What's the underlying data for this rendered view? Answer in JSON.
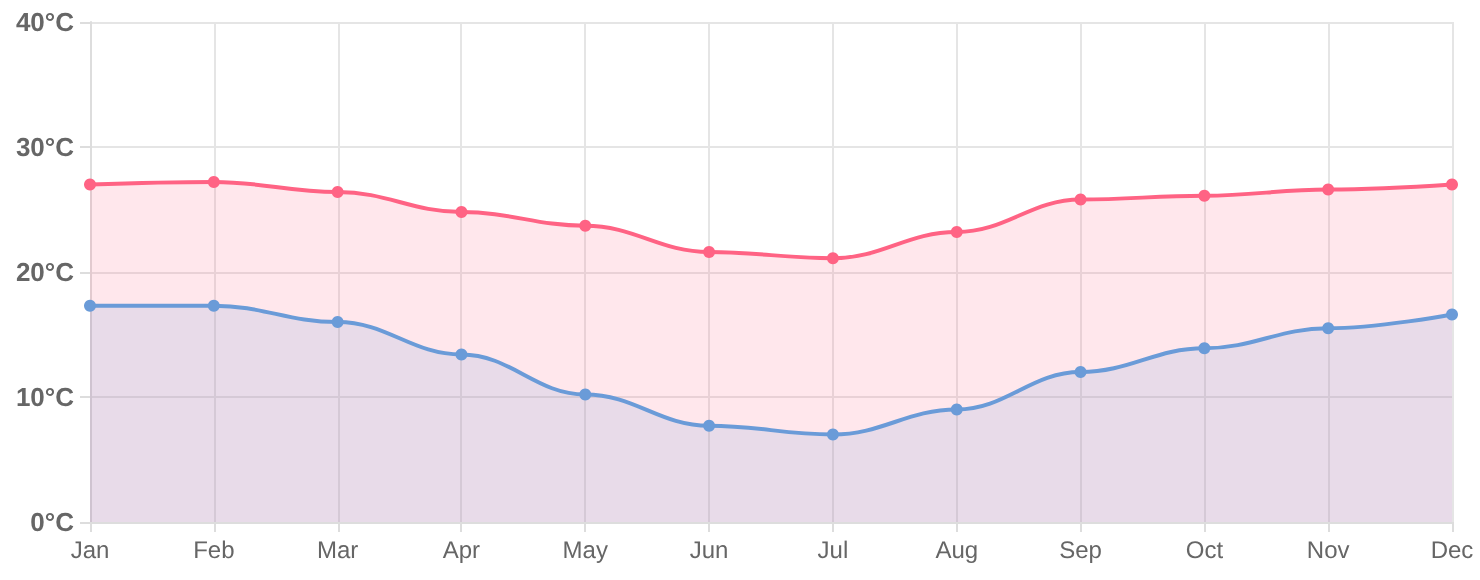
{
  "chart_data": {
    "type": "area",
    "categories": [
      "Jan",
      "Feb",
      "Mar",
      "Apr",
      "May",
      "Jun",
      "Jul",
      "Aug",
      "Sep",
      "Oct",
      "Nov",
      "Dec"
    ],
    "series": [
      {
        "color": "#ff6384",
        "values": [
          27.0,
          27.2,
          26.4,
          24.8,
          23.7,
          21.6,
          21.1,
          23.2,
          25.8,
          26.1,
          26.6,
          27.0
        ]
      },
      {
        "color": "#6a9bd8",
        "values": [
          17.3,
          17.3,
          16.0,
          13.4,
          10.2,
          7.7,
          7.0,
          9.0,
          12.0,
          13.9,
          15.5,
          16.6
        ]
      }
    ],
    "ylim": [
      0,
      40
    ],
    "yticks": [
      {
        "value": 0,
        "label": "0°C"
      },
      {
        "value": 10,
        "label": "10°C"
      },
      {
        "value": 20,
        "label": "20°C"
      },
      {
        "value": 30,
        "label": "30°C"
      },
      {
        "value": 40,
        "label": "40°C"
      }
    ],
    "grid": true,
    "marker": "circle",
    "line_style": "solid"
  }
}
